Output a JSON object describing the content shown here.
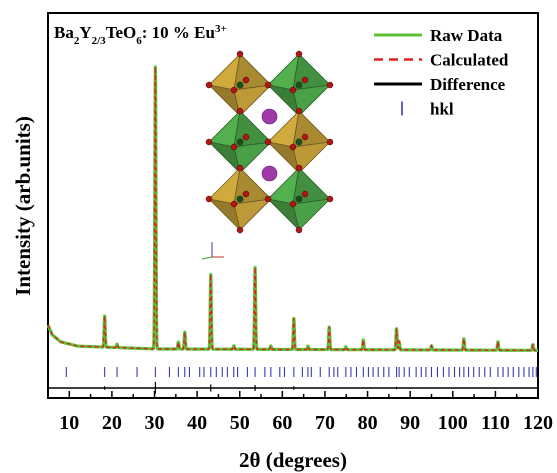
{
  "chart_data": {
    "type": "line",
    "compound": {
      "parts": [
        "Ba",
        "2",
        "Y",
        "2/3",
        "TeO",
        "6",
        ": 10 % Eu",
        "3+"
      ]
    },
    "xlabel": "2θ (degrees)",
    "ylabel": "Intensity (arb.units)",
    "xlim": [
      5,
      120
    ],
    "x_ticks": [
      10,
      20,
      30,
      40,
      50,
      60,
      70,
      80,
      90,
      100,
      110,
      120
    ],
    "y_ticks_shown": false,
    "legend_position": "top-right",
    "legend": [
      {
        "label": "Raw Data",
        "style": "solid",
        "color": "#5dc23a"
      },
      {
        "label": "Calculated",
        "style": "dashed",
        "color": "#e02020"
      },
      {
        "label": "Difference",
        "style": "solid",
        "color": "#000000"
      },
      {
        "label": "hkl",
        "style": "tick",
        "color": "#3a3ab0"
      }
    ],
    "background": [
      [
        5,
        0.11
      ],
      [
        6,
        0.075
      ],
      [
        8,
        0.05
      ],
      [
        12,
        0.035
      ],
      [
        30,
        0.025
      ],
      [
        120,
        0.02
      ]
    ],
    "peaks": [
      {
        "x": 18.3,
        "h": 0.11
      },
      {
        "x": 21.2,
        "h": 0.012
      },
      {
        "x": 30.2,
        "h": 1.0
      },
      {
        "x": 35.6,
        "h": 0.025
      },
      {
        "x": 37.1,
        "h": 0.06
      },
      {
        "x": 43.2,
        "h": 0.265
      },
      {
        "x": 48.6,
        "h": 0.012
      },
      {
        "x": 53.6,
        "h": 0.29
      },
      {
        "x": 57.3,
        "h": 0.012
      },
      {
        "x": 62.7,
        "h": 0.11
      },
      {
        "x": 66.0,
        "h": 0.012
      },
      {
        "x": 71.0,
        "h": 0.08
      },
      {
        "x": 74.9,
        "h": 0.01
      },
      {
        "x": 79.0,
        "h": 0.035
      },
      {
        "x": 86.8,
        "h": 0.075
      },
      {
        "x": 87.4,
        "h": 0.03
      },
      {
        "x": 95.0,
        "h": 0.015
      },
      {
        "x": 102.6,
        "h": 0.04
      },
      {
        "x": 110.6,
        "h": 0.03
      },
      {
        "x": 118.8,
        "h": 0.02
      }
    ],
    "hkl_positions": [
      9.3,
      18.3,
      21.2,
      25.9,
      30.2,
      33.5,
      35.6,
      37.1,
      38.2,
      40.6,
      41.6,
      43.2,
      44.5,
      45.9,
      47.1,
      48.6,
      49.5,
      51.8,
      53.6,
      55.9,
      57.3,
      59.4,
      60.5,
      62.7,
      64.7,
      66.0,
      66.8,
      68.9,
      71.0,
      72.1,
      73.0,
      74.9,
      76.1,
      77.4,
      79.0,
      80.2,
      81.3,
      82.5,
      83.8,
      85.0,
      86.8,
      87.4,
      88.6,
      89.8,
      91.4,
      92.6,
      93.7,
      95.0,
      96.4,
      97.8,
      99.1,
      100.4,
      101.6,
      102.6,
      103.7,
      104.9,
      106.2,
      107.5,
      108.8,
      110.6,
      111.8,
      113.0,
      114.2,
      115.5,
      116.7,
      117.9,
      118.8,
      119.6
    ],
    "difference_spikes": [
      [
        18.3,
        0.3
      ],
      [
        30.2,
        1.0
      ],
      [
        43.2,
        0.6
      ],
      [
        53.6,
        0.5
      ],
      [
        62.7,
        0.3
      ],
      [
        86.8,
        0.2
      ]
    ],
    "inset": {
      "type": "crystal-structure",
      "octahedra": [
        {
          "col": 0,
          "row": 0,
          "color": "#c7a23a"
        },
        {
          "col": 1,
          "row": 0,
          "color": "#4ea84a"
        },
        {
          "col": 0,
          "row": 1,
          "color": "#4ea84a"
        },
        {
          "col": 1,
          "row": 1,
          "color": "#c7a23a"
        },
        {
          "col": 0,
          "row": 2,
          "color": "#c7a23a"
        },
        {
          "col": 1,
          "row": 2,
          "color": "#4ea84a"
        }
      ],
      "cation_color": "#a03aa8",
      "anion_color": "#b01818",
      "axes_icon": true
    }
  }
}
